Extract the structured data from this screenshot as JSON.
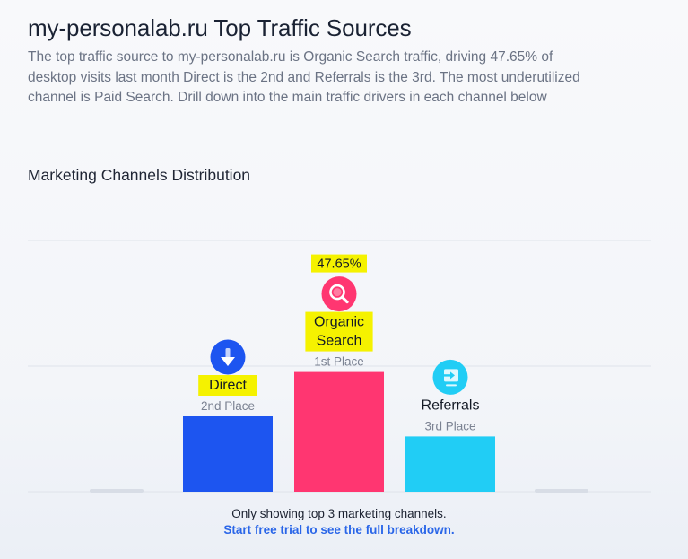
{
  "header": {
    "title": "my-personalab.ru Top Traffic Sources",
    "description": "The top traffic source to my-personalab.ru is Organic Search traffic, driving 47.65% of desktop visits last month Direct is the 2nd and Referrals is the 3rd. The most underutilized channel is Paid Search. Drill down into the main traffic drivers in each channel below"
  },
  "section": {
    "title": "Marketing Channels Distribution"
  },
  "chart_data": {
    "type": "bar",
    "title": "Marketing Channels Distribution",
    "categories": [
      "",
      "Direct",
      "Organic Search",
      "Referrals",
      ""
    ],
    "values": [
      0,
      30,
      47.65,
      22,
      0
    ],
    "bar_labels": [
      {
        "name": "",
        "place": "",
        "value_label": "",
        "icon": "",
        "color": "#d8dde6",
        "highlight": false,
        "placeholder": true
      },
      {
        "name": "Direct",
        "place": "2nd Place",
        "value_label": "",
        "icon": "arrow-down-icon",
        "color": "#1d55f0",
        "highlight": true,
        "placeholder": false
      },
      {
        "name": "Organic Search",
        "place": "1st Place",
        "value_label": "47.65%",
        "icon": "magnifier-icon",
        "color": "#ff3671",
        "highlight": true,
        "placeholder": false
      },
      {
        "name": "Referrals",
        "place": "3rd Place",
        "value_label": "",
        "icon": "arrow-into-screen-icon",
        "color": "#21cdf5",
        "highlight": false,
        "placeholder": false
      },
      {
        "name": "",
        "place": "",
        "value_label": "",
        "icon": "",
        "color": "#d8dde6",
        "highlight": false,
        "placeholder": true
      }
    ],
    "ylim": [
      0,
      100
    ],
    "grid": true,
    "highlight_color": "#f5f200"
  },
  "footer": {
    "note": "Only showing top 3 marketing channels.",
    "link": "Start free trial to see the full breakdown."
  }
}
